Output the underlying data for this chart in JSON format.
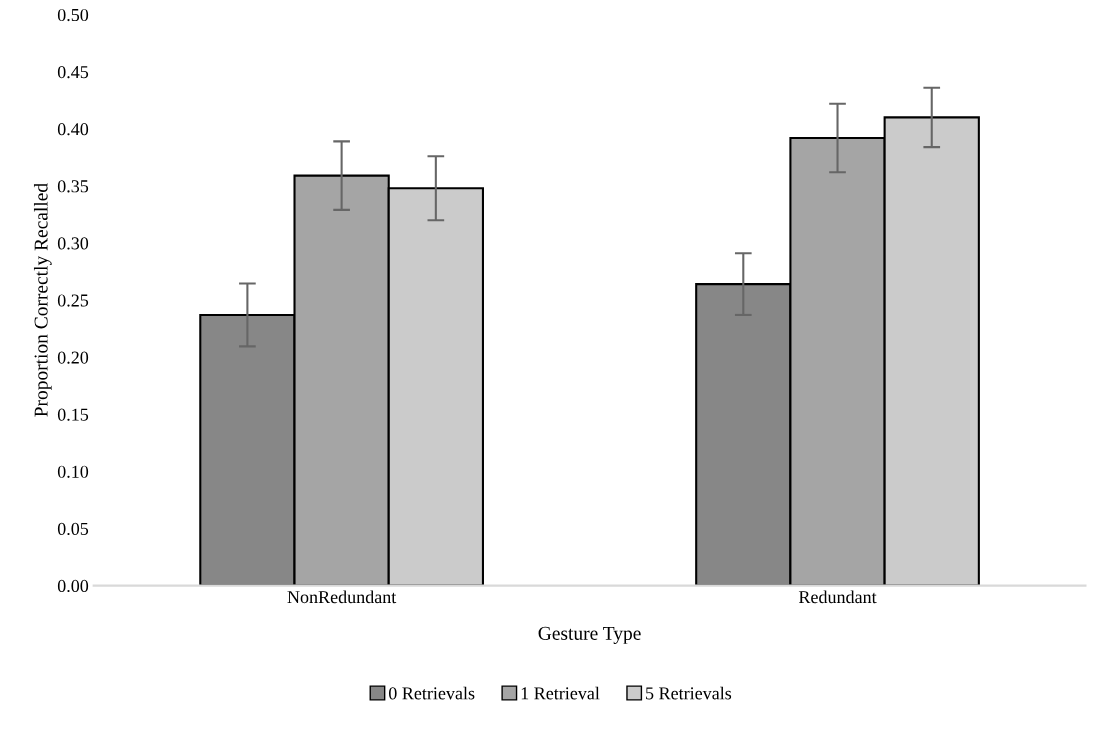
{
  "chart_data": {
    "type": "bar",
    "xlabel": "Gesture Type",
    "ylabel": "Proportion Correctly Recalled",
    "categories": [
      "NonRedundant",
      "Redundant"
    ],
    "series": [
      {
        "name": "0 Retrievals",
        "color": "#878787",
        "values": [
          0.237,
          0.264
        ],
        "errors": [
          0.0275,
          0.027
        ]
      },
      {
        "name": "1 Retrieval",
        "color": "#a5a5a5",
        "values": [
          0.359,
          0.392
        ],
        "errors": [
          0.03,
          0.03
        ]
      },
      {
        "name": "5 Retrievals",
        "color": "#cbcbcb",
        "values": [
          0.348,
          0.41
        ],
        "errors": [
          0.028,
          0.026
        ]
      }
    ],
    "ylim": [
      0,
      0.5
    ],
    "yticks": [
      {
        "value": 0,
        "label": "0.00"
      },
      {
        "value": 0.05,
        "label": "0.05"
      },
      {
        "value": 0.1,
        "label": "0.10"
      },
      {
        "value": 0.15,
        "label": "0.15"
      },
      {
        "value": 0.2,
        "label": "0.20"
      },
      {
        "value": 0.25,
        "label": "0.25"
      },
      {
        "value": 0.3,
        "label": "0.30"
      },
      {
        "value": 0.35,
        "label": "0.35"
      },
      {
        "value": 0.4,
        "label": "0.40"
      },
      {
        "value": 0.45,
        "label": "0.45"
      },
      {
        "value": 0.5,
        "label": "0.50"
      }
    ],
    "grid": false,
    "legend": "bottom"
  }
}
